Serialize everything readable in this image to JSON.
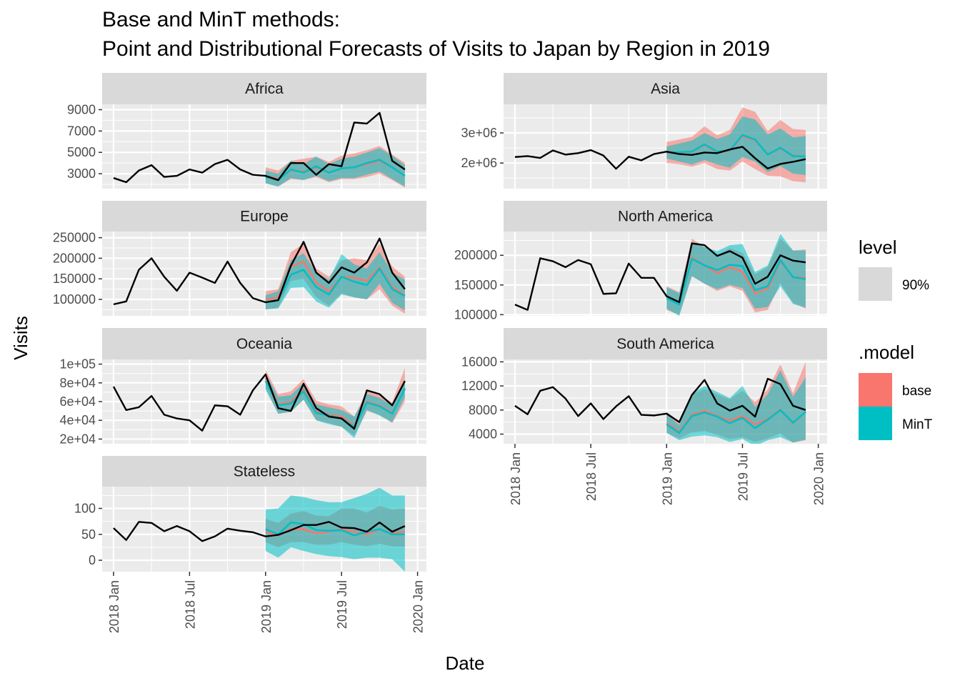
{
  "colors": {
    "base": "#F8766D",
    "mint": "#00BFC4",
    "actual": "#000000",
    "panel_bg": "#EBEBEB",
    "strip_bg": "#D9D9D9",
    "grid": "#FFFFFF"
  },
  "chart_data": {
    "type": "line",
    "title": [
      "Base and MinT methods:",
      "Point and Distributional Forecasts of Visits to Japan by Region in 2019"
    ],
    "xlabel": "Date",
    "ylabel": "Visits",
    "x_ticks": [
      "2018 Jan",
      "2018 Jul",
      "2019 Jan",
      "2019 Jul",
      "2020 Jan"
    ],
    "x_range": [
      "2017-12",
      "2020-01"
    ],
    "legend": {
      "position": "right",
      "level_title": "level",
      "level_label": "90%",
      "model_title": ".model",
      "models": [
        "base",
        "MinT"
      ]
    },
    "actual_x": [
      "2018-01",
      "2018-02",
      "2018-03",
      "2018-04",
      "2018-05",
      "2018-06",
      "2018-07",
      "2018-08",
      "2018-09",
      "2018-10",
      "2018-11",
      "2018-12",
      "2019-01",
      "2019-02",
      "2019-03",
      "2019-04",
      "2019-05",
      "2019-06",
      "2019-07",
      "2019-08",
      "2019-09",
      "2019-10",
      "2019-11",
      "2019-12"
    ],
    "forecast_x": [
      "2019-01",
      "2019-02",
      "2019-03",
      "2019-04",
      "2019-05",
      "2019-06",
      "2019-07",
      "2019-08",
      "2019-09",
      "2019-10",
      "2019-11",
      "2019-12"
    ],
    "panels": [
      {
        "region": "Africa",
        "yticks": [
          3000,
          5000,
          7000,
          9000
        ],
        "ytick_labels": [
          "3000",
          "5000",
          "7000",
          "9000"
        ],
        "ylim": [
          1600,
          9500
        ],
        "actual": [
          2600,
          2200,
          3300,
          3800,
          2700,
          2800,
          3400,
          3100,
          3900,
          4300,
          3400,
          2900,
          2800,
          2400,
          4000,
          4000,
          2900,
          3900,
          3700,
          7800,
          7700,
          8700,
          4200,
          3400
        ],
        "base": {
          "mean": [
            2800,
            2500,
            3300,
            3200,
            3600,
            3100,
            3500,
            3600,
            3900,
            4200,
            3600,
            2800
          ],
          "lo": [
            2100,
            1800,
            2500,
            2400,
            2700,
            2200,
            2500,
            2500,
            2700,
            3000,
            2400,
            1700
          ],
          "hi": [
            3600,
            3300,
            4200,
            4400,
            4600,
            4100,
            4700,
            4900,
            5200,
            5600,
            4800,
            4000
          ]
        },
        "mint": {
          "mean": [
            2700,
            2400,
            3400,
            3100,
            3700,
            3100,
            3500,
            3600,
            4000,
            4300,
            3600,
            2800
          ],
          "lo": [
            2100,
            1800,
            2600,
            2400,
            2800,
            2300,
            2600,
            2600,
            2900,
            3200,
            2500,
            1800
          ],
          "hi": [
            3300,
            3000,
            4200,
            3900,
            4600,
            3900,
            4400,
            4600,
            5000,
            5400,
            4700,
            3800
          ]
        }
      },
      {
        "region": "Asia",
        "yticks": [
          2000000,
          3000000
        ],
        "ytick_labels": [
          "2e+06",
          "3e+06"
        ],
        "ylim": [
          1150000,
          3950000
        ],
        "actual": [
          2200000,
          2230000,
          2170000,
          2420000,
          2280000,
          2330000,
          2430000,
          2250000,
          1810000,
          2210000,
          2090000,
          2300000,
          2380000,
          2300000,
          2270000,
          2350000,
          2330000,
          2450000,
          2540000,
          2160000,
          1820000,
          1970000,
          2040000,
          2130000
        ],
        "base": {
          "mean": [
            2330000,
            2340000,
            2370000,
            2600000,
            2360000,
            2400000,
            2900000,
            2750000,
            2300000,
            2480000,
            2250000,
            2220000
          ],
          "lo": [
            2000000,
            1960000,
            1880000,
            2000000,
            1800000,
            1750000,
            2050000,
            1800000,
            1580000,
            1560000,
            1400000,
            1360000
          ],
          "hi": [
            2700000,
            2780000,
            2870000,
            3220000,
            2920000,
            3100000,
            3850000,
            3700000,
            3060000,
            3430000,
            3130000,
            3100000
          ]
        },
        "mint": {
          "mean": [
            2350000,
            2360000,
            2380000,
            2620000,
            2380000,
            2420000,
            2930000,
            2780000,
            2280000,
            2510000,
            2230000,
            2220000
          ],
          "lo": [
            2150000,
            2050000,
            1950000,
            2100000,
            1950000,
            1850000,
            2200000,
            2050000,
            1700000,
            1900000,
            1650000,
            1600000
          ],
          "hi": [
            2550000,
            2650000,
            2750000,
            3000000,
            2800000,
            2950000,
            3550000,
            3450000,
            2950000,
            3150000,
            2850000,
            2900000
          ]
        }
      },
      {
        "region": "Europe",
        "yticks": [
          100000,
          150000,
          200000,
          250000
        ],
        "ytick_labels": [
          "100000",
          "150000",
          "200000",
          "250000"
        ],
        "ylim": [
          60000,
          265000
        ],
        "actual": [
          88000,
          95000,
          172000,
          200000,
          155000,
          121000,
          165000,
          153000,
          140000,
          192000,
          140000,
          103000,
          93000,
          98000,
          182000,
          240000,
          165000,
          140000,
          178000,
          165000,
          190000,
          248000,
          165000,
          125000
        ],
        "base": {
          "mean": [
            100000,
            105000,
            180000,
            192000,
            140000,
            120000,
            155000,
            152000,
            145000,
            178000,
            130000,
            110000
          ],
          "lo": [
            75000,
            80000,
            145000,
            150000,
            105000,
            85000,
            115000,
            105000,
            100000,
            125000,
            85000,
            65000
          ],
          "hi": [
            120000,
            125000,
            215000,
            235000,
            175000,
            155000,
            195000,
            200000,
            195000,
            235000,
            180000,
            155000
          ]
        },
        "mint": {
          "mean": [
            93000,
            98000,
            160000,
            172000,
            130000,
            112000,
            155000,
            143000,
            135000,
            175000,
            125000,
            108000
          ],
          "lo": [
            76000,
            78000,
            128000,
            130000,
            95000,
            80000,
            112000,
            105000,
            100000,
            138000,
            92000,
            73000
          ],
          "hi": [
            110000,
            120000,
            195000,
            212000,
            165000,
            148000,
            210000,
            185000,
            175000,
            215000,
            165000,
            148000
          ]
        }
      },
      {
        "region": "North America",
        "yticks": [
          100000,
          150000,
          200000
        ],
        "ytick_labels": [
          "100000",
          "150000",
          "200000"
        ],
        "ylim": [
          98000,
          240000
        ],
        "actual": [
          117000,
          108000,
          195000,
          190000,
          180000,
          192000,
          185000,
          135000,
          136000,
          186000,
          162000,
          162000,
          131000,
          121000,
          220000,
          217000,
          199000,
          207000,
          196000,
          152000,
          164000,
          200000,
          191000,
          188000
        ],
        "base": {
          "mean": [
            128000,
            118000,
            196000,
            183000,
            170000,
            180000,
            172000,
            136000,
            144000,
            190000,
            163000,
            162000
          ],
          "lo": [
            108000,
            100000,
            165000,
            152000,
            140000,
            148000,
            140000,
            104000,
            108000,
            153000,
            120000,
            110000
          ],
          "hi": [
            148000,
            138000,
            228000,
            214000,
            200000,
            212000,
            204000,
            168000,
            180000,
            228000,
            208000,
            210000
          ]
        },
        "mint": {
          "mean": [
            128000,
            117000,
            194000,
            183000,
            175000,
            184000,
            182000,
            141000,
            148000,
            192000,
            163000,
            160000
          ],
          "lo": [
            110000,
            98000,
            165000,
            152000,
            143000,
            150000,
            145000,
            110000,
            113000,
            148000,
            118000,
            112000
          ],
          "hi": [
            146000,
            136000,
            222000,
            214000,
            207000,
            217000,
            219000,
            172000,
            183000,
            236000,
            208000,
            208000
          ]
        }
      },
      {
        "region": "Oceania",
        "yticks": [
          20000,
          40000,
          60000,
          80000,
          100000
        ],
        "ytick_labels": [
          "2e+04",
          "4e+04",
          "6e+04",
          "8e+04",
          "1e+05"
        ],
        "ylim": [
          15000,
          105000
        ],
        "actual": [
          76000,
          51000,
          54000,
          66000,
          46000,
          42000,
          40000,
          29000,
          56000,
          55000,
          46000,
          72000,
          89000,
          53000,
          50000,
          79000,
          53000,
          44000,
          42000,
          31000,
          72000,
          68000,
          56000,
          82000
        ],
        "base": {
          "mean": [
            85000,
            57000,
            60000,
            73000,
            50000,
            46000,
            44000,
            34000,
            60000,
            56000,
            48000,
            74000
          ],
          "lo": [
            74000,
            47000,
            49000,
            62000,
            40000,
            37000,
            33000,
            24000,
            50000,
            46000,
            37000,
            60000
          ],
          "hi": [
            94000,
            68000,
            71000,
            84000,
            61000,
            57000,
            55000,
            44000,
            71000,
            67000,
            59000,
            96000
          ]
        },
        "mint": {
          "mean": [
            82000,
            56000,
            58000,
            71000,
            48000,
            45000,
            42000,
            33000,
            59000,
            55000,
            47000,
            74000
          ],
          "lo": [
            73000,
            47000,
            49000,
            62000,
            40000,
            36000,
            33000,
            21000,
            51000,
            45000,
            38000,
            65000
          ],
          "hi": [
            90000,
            65000,
            67000,
            80000,
            57000,
            54000,
            51000,
            44000,
            68000,
            64000,
            56000,
            83000
          ]
        }
      },
      {
        "region": "South America",
        "yticks": [
          4000,
          8000,
          12000,
          16000
        ],
        "ytick_labels": [
          "4000",
          "8000",
          "12000",
          "16000"
        ],
        "ylim": [
          2400,
          16400
        ],
        "actual": [
          8700,
          7300,
          11200,
          11800,
          9900,
          7000,
          9100,
          6500,
          8600,
          10300,
          7200,
          7100,
          7400,
          6000,
          10500,
          13000,
          9100,
          7900,
          8700,
          6900,
          13200,
          12300,
          8700,
          8000
        ],
        "base": {
          "mean": [
            5800,
            4400,
            7200,
            7900,
            7000,
            6200,
            7000,
            5600,
            6500,
            8100,
            5800,
            7700
          ],
          "lo": [
            4200,
            3300,
            4300,
            4500,
            3900,
            3200,
            3500,
            2700,
            3300,
            4100,
            2600,
            3000
          ],
          "hi": [
            7700,
            6100,
            10600,
            11500,
            10600,
            9800,
            11200,
            9300,
            11400,
            15600,
            10800,
            16000
          ]
        },
        "mint": {
          "mean": [
            5600,
            4200,
            7000,
            7600,
            6900,
            5800,
            6700,
            5000,
            6400,
            8000,
            5900,
            7700
          ],
          "lo": [
            4200,
            3000,
            3600,
            3800,
            3500,
            2700,
            3200,
            2000,
            3000,
            3500,
            2600,
            3100
          ],
          "hi": [
            7300,
            5500,
            10800,
            12000,
            11000,
            10000,
            12000,
            8500,
            10600,
            14600,
            10200,
            13400
          ]
        }
      },
      {
        "region": "Stateless",
        "yticks": [
          0,
          50,
          100
        ],
        "ytick_labels": [
          "0",
          "50",
          "100"
        ],
        "ylim": [
          -22,
          142
        ],
        "actual": [
          62,
          39,
          74,
          72,
          56,
          66,
          56,
          37,
          46,
          61,
          57,
          54,
          46,
          49,
          58,
          68,
          68,
          74,
          63,
          62,
          55,
          73,
          55,
          66
        ],
        "base": {
          "mean": [
            55,
            48,
            60,
            60,
            52,
            55,
            60,
            55,
            50,
            60,
            52,
            55
          ],
          "lo": [
            35,
            25,
            35,
            35,
            30,
            30,
            35,
            30,
            27,
            32,
            27,
            26
          ],
          "hi": [
            80,
            72,
            90,
            95,
            86,
            85,
            100,
            100,
            92,
            105,
            98,
            100
          ]
        },
        "mint": {
          "mean": [
            60,
            50,
            73,
            70,
            58,
            57,
            58,
            48,
            55,
            60,
            50,
            50
          ],
          "lo": [
            18,
            5,
            25,
            18,
            12,
            8,
            6,
            2,
            5,
            5,
            2,
            -22
          ],
          "hi": [
            98,
            100,
            125,
            122,
            116,
            112,
            112,
            120,
            128,
            140,
            125,
            125
          ]
        }
      }
    ]
  }
}
